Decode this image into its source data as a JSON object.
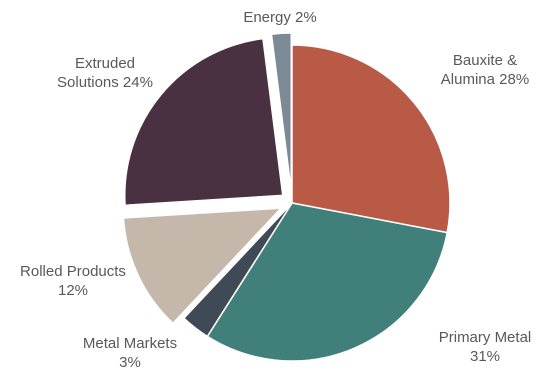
{
  "chart_data": {
    "type": "pie",
    "title": "",
    "slices": [
      {
        "name": "Bauxite & Alumina",
        "value": 28,
        "label_lines": [
          "Bauxite &",
          "Alumina 28%"
        ],
        "color": "#b95a46",
        "exploded": false
      },
      {
        "name": "Primary Metal",
        "value": 31,
        "label_lines": [
          "Primary Metal",
          "31%"
        ],
        "color": "#41807a",
        "exploded": false
      },
      {
        "name": "Metal Markets",
        "value": 3,
        "label_lines": [
          "Metal Markets",
          "3%"
        ],
        "color": "#3f4a56",
        "exploded": false
      },
      {
        "name": "Rolled Products",
        "value": 12,
        "label_lines": [
          "Rolled Products",
          "12%"
        ],
        "color": "#c5b8aa",
        "exploded": true
      },
      {
        "name": "Extruded Solutions",
        "value": 24,
        "label_lines": [
          "Extruded",
          "Solutions 24%"
        ],
        "color": "#4a3142",
        "exploded": true
      },
      {
        "name": "Energy",
        "value": 2,
        "label_lines": [
          "Energy 2%"
        ],
        "color": "#7b8a95",
        "exploded": true
      }
    ]
  }
}
